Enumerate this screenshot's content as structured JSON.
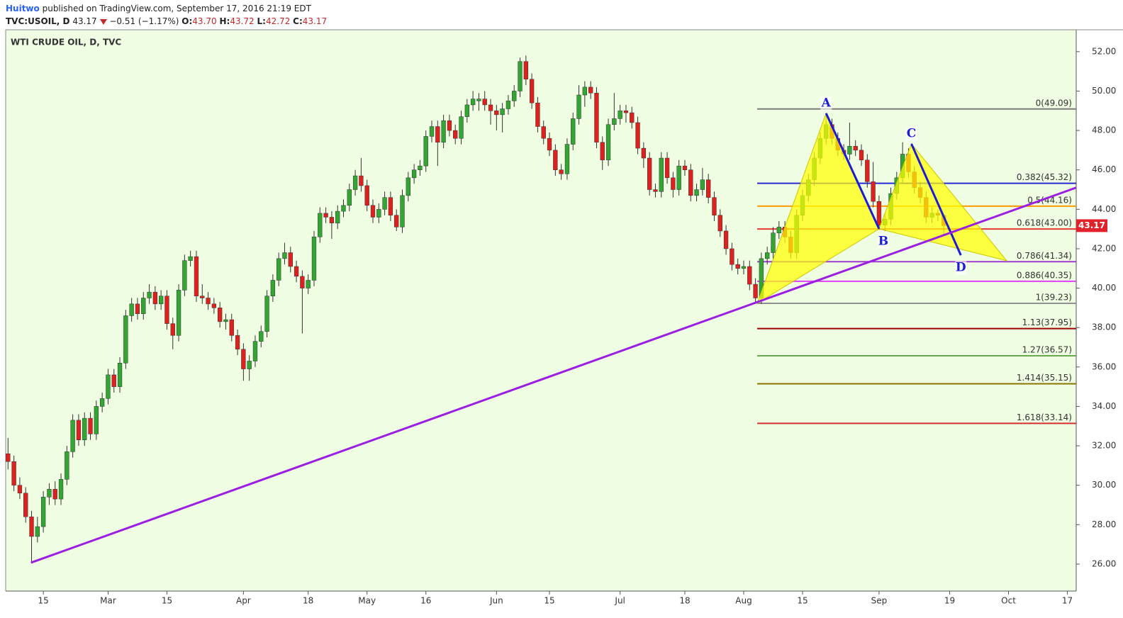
{
  "header": {
    "author": "Huitwo",
    "byline": "published on TradingView.com, September 17, 2016 21:19 EDT",
    "symbol": "TVC:USOIL, D",
    "price": "43.17",
    "change": "−0.51 (−1.17%)",
    "ohlc": [
      {
        "key": "O:",
        "value": "43.70"
      },
      {
        "key": "H:",
        "value": "43.72"
      },
      {
        "key": "L:",
        "value": "42.72"
      },
      {
        "key": "C:",
        "value": "43.17"
      }
    ]
  },
  "chart_data": {
    "type": "candlestick",
    "title": "WTI CRUDE OIL, D, TVC",
    "up_color": "#33a532",
    "down_color": "#e01f1f",
    "background": "#effde3",
    "last_price_color": "#e0232b",
    "xlim": [
      -0.4,
      181.5
    ],
    "ylim": [
      24.63,
      53.11
    ],
    "yticks": [
      {
        "value": 26,
        "label": "26.00"
      },
      {
        "value": 28,
        "label": "28.00"
      },
      {
        "value": 30,
        "label": "30.00"
      },
      {
        "value": 32,
        "label": "32.00"
      },
      {
        "value": 34,
        "label": "34.00"
      },
      {
        "value": 36,
        "label": "36.00"
      },
      {
        "value": 38,
        "label": "38.00"
      },
      {
        "value": 40,
        "label": "40.00"
      },
      {
        "value": 42,
        "label": "42.00"
      },
      {
        "value": 44,
        "label": "44.00"
      },
      {
        "value": 46,
        "label": "46.00"
      },
      {
        "value": 48,
        "label": "48.00"
      },
      {
        "value": 50,
        "label": "50.00"
      },
      {
        "value": 52,
        "label": "52.00"
      }
    ],
    "xticks": [
      {
        "value": 6,
        "label": "15"
      },
      {
        "value": 17,
        "label": "Mar"
      },
      {
        "value": 27,
        "label": "15"
      },
      {
        "value": 40,
        "label": "Apr"
      },
      {
        "value": 51,
        "label": "18"
      },
      {
        "value": 61,
        "label": "May"
      },
      {
        "value": 71,
        "label": "16"
      },
      {
        "value": 83,
        "label": "Jun"
      },
      {
        "value": 92,
        "label": "15"
      },
      {
        "value": 104,
        "label": "Jul"
      },
      {
        "value": 115,
        "label": "18"
      },
      {
        "value": 125,
        "label": "Aug"
      },
      {
        "value": 135,
        "label": "15"
      },
      {
        "value": 148,
        "label": "Sep"
      },
      {
        "value": 160,
        "label": "19"
      },
      {
        "value": 170,
        "label": "Oct"
      },
      {
        "value": 180,
        "label": "17"
      }
    ],
    "candles": [
      [
        31.6,
        32.4,
        30.8,
        31.2
      ],
      [
        31.2,
        31.5,
        29.7,
        30.0
      ],
      [
        30.0,
        30.4,
        29.3,
        29.6
      ],
      [
        29.6,
        29.9,
        28.1,
        28.4
      ],
      [
        28.4,
        28.7,
        26.1,
        27.4
      ],
      [
        27.4,
        28.4,
        27.1,
        27.9
      ],
      [
        27.9,
        29.7,
        27.6,
        29.4
      ],
      [
        29.4,
        30.1,
        29.0,
        29.8
      ],
      [
        29.8,
        30.2,
        29.0,
        29.3
      ],
      [
        29.3,
        30.6,
        29.0,
        30.3
      ],
      [
        30.3,
        32.0,
        30.0,
        31.7
      ],
      [
        31.7,
        33.6,
        31.4,
        33.3
      ],
      [
        33.3,
        33.6,
        32.0,
        32.3
      ],
      [
        32.3,
        33.7,
        32.0,
        33.4
      ],
      [
        33.4,
        33.7,
        32.3,
        32.6
      ],
      [
        32.6,
        34.3,
        32.3,
        34.0
      ],
      [
        34.0,
        34.7,
        33.7,
        34.4
      ],
      [
        34.4,
        35.9,
        34.1,
        35.6
      ],
      [
        35.6,
        35.9,
        34.7,
        35.0
      ],
      [
        35.0,
        36.5,
        34.7,
        36.2
      ],
      [
        36.2,
        38.9,
        35.9,
        38.6
      ],
      [
        38.6,
        39.5,
        38.3,
        39.2
      ],
      [
        39.2,
        39.5,
        38.4,
        38.7
      ],
      [
        38.7,
        39.8,
        38.4,
        39.5
      ],
      [
        39.5,
        40.2,
        39.2,
        39.8
      ],
      [
        39.8,
        40.1,
        38.9,
        39.2
      ],
      [
        39.2,
        39.9,
        38.9,
        39.6
      ],
      [
        39.6,
        39.9,
        37.9,
        38.2
      ],
      [
        38.2,
        38.5,
        36.9,
        37.6
      ],
      [
        37.6,
        40.2,
        37.3,
        39.9
      ],
      [
        39.9,
        41.7,
        39.6,
        41.4
      ],
      [
        41.4,
        41.9,
        41.1,
        41.6
      ],
      [
        41.6,
        41.9,
        39.3,
        39.6
      ],
      [
        39.6,
        40.2,
        39.2,
        39.5
      ],
      [
        39.5,
        39.8,
        38.9,
        39.2
      ],
      [
        39.2,
        39.5,
        38.7,
        39.0
      ],
      [
        39.0,
        39.3,
        38.0,
        38.3
      ],
      [
        38.3,
        38.7,
        37.9,
        38.4
      ],
      [
        38.4,
        38.7,
        37.3,
        37.6
      ],
      [
        37.6,
        37.9,
        36.6,
        36.9
      ],
      [
        36.9,
        37.2,
        35.3,
        35.9
      ],
      [
        35.9,
        36.6,
        35.3,
        36.3
      ],
      [
        36.3,
        37.6,
        36.0,
        37.3
      ],
      [
        37.3,
        38.1,
        37.0,
        37.8
      ],
      [
        37.8,
        39.9,
        37.5,
        39.6
      ],
      [
        39.6,
        40.7,
        39.3,
        40.4
      ],
      [
        40.4,
        41.8,
        40.1,
        41.5
      ],
      [
        41.5,
        42.3,
        41.2,
        41.8
      ],
      [
        41.8,
        42.1,
        40.8,
        41.1
      ],
      [
        41.1,
        41.4,
        40.3,
        40.6
      ],
      [
        40.6,
        40.9,
        37.7,
        40.0
      ],
      [
        40.0,
        40.7,
        39.7,
        40.4
      ],
      [
        40.4,
        42.9,
        40.1,
        42.6
      ],
      [
        42.6,
        44.1,
        42.3,
        43.8
      ],
      [
        43.8,
        44.1,
        43.3,
        43.6
      ],
      [
        43.6,
        43.9,
        42.5,
        43.3
      ],
      [
        43.3,
        44.2,
        43.0,
        43.9
      ],
      [
        43.9,
        44.5,
        43.6,
        44.2
      ],
      [
        44.2,
        45.3,
        43.9,
        45.0
      ],
      [
        45.0,
        46.0,
        44.7,
        45.7
      ],
      [
        45.7,
        46.6,
        44.9,
        45.2
      ],
      [
        45.2,
        45.5,
        43.9,
        44.2
      ],
      [
        44.2,
        44.5,
        43.3,
        43.6
      ],
      [
        43.6,
        44.3,
        43.3,
        44.0
      ],
      [
        44.0,
        44.9,
        43.7,
        44.6
      ],
      [
        44.6,
        44.9,
        43.4,
        43.7
      ],
      [
        43.7,
        44.0,
        42.9,
        43.1
      ],
      [
        43.1,
        45.0,
        42.8,
        44.7
      ],
      [
        44.7,
        45.9,
        44.4,
        45.6
      ],
      [
        45.6,
        46.3,
        45.3,
        46.0
      ],
      [
        46.0,
        46.5,
        45.7,
        46.2
      ],
      [
        46.2,
        48.0,
        45.9,
        47.7
      ],
      [
        47.7,
        48.5,
        47.4,
        48.2
      ],
      [
        48.2,
        48.5,
        46.2,
        47.4
      ],
      [
        47.4,
        48.8,
        47.1,
        48.5
      ],
      [
        48.5,
        48.8,
        47.7,
        48.0
      ],
      [
        48.0,
        48.3,
        47.3,
        47.6
      ],
      [
        47.6,
        49.0,
        47.3,
        48.7
      ],
      [
        48.7,
        49.6,
        48.4,
        49.3
      ],
      [
        49.3,
        50.0,
        49.0,
        49.6
      ],
      [
        49.5,
        49.9,
        49.0,
        49.6
      ],
      [
        49.6,
        50.0,
        49.0,
        49.3
      ],
      [
        49.3,
        49.6,
        48.3,
        49.0
      ],
      [
        49.0,
        49.3,
        48.0,
        48.8
      ],
      [
        48.8,
        49.4,
        47.9,
        49.1
      ],
      [
        49.1,
        49.8,
        48.8,
        49.5
      ],
      [
        49.5,
        50.3,
        49.2,
        50.0
      ],
      [
        50.0,
        51.7,
        49.7,
        51.5
      ],
      [
        51.5,
        51.8,
        50.3,
        50.6
      ],
      [
        50.6,
        50.9,
        49.1,
        49.4
      ],
      [
        49.4,
        49.7,
        47.9,
        48.2
      ],
      [
        48.2,
        48.5,
        47.3,
        47.6
      ],
      [
        47.6,
        47.9,
        46.7,
        47.0
      ],
      [
        47.0,
        47.3,
        45.7,
        46.0
      ],
      [
        46.0,
        46.3,
        45.5,
        45.8
      ],
      [
        45.8,
        47.6,
        45.5,
        47.3
      ],
      [
        47.3,
        48.9,
        47.0,
        48.6
      ],
      [
        48.6,
        50.3,
        48.3,
        49.8
      ],
      [
        49.8,
        50.5,
        49.2,
        50.2
      ],
      [
        50.2,
        50.5,
        49.6,
        49.9
      ],
      [
        49.9,
        50.2,
        47.1,
        47.4
      ],
      [
        47.4,
        47.7,
        46.0,
        46.5
      ],
      [
        46.5,
        48.6,
        46.2,
        48.3
      ],
      [
        48.3,
        49.9,
        48.0,
        48.6
      ],
      [
        48.6,
        49.3,
        48.3,
        49.0
      ],
      [
        49.0,
        49.3,
        48.4,
        48.9
      ],
      [
        48.9,
        49.2,
        48.1,
        48.4
      ],
      [
        48.4,
        48.7,
        46.8,
        47.1
      ],
      [
        47.1,
        47.4,
        46.1,
        46.6
      ],
      [
        46.6,
        46.9,
        44.7,
        45.0
      ],
      [
        45.0,
        45.3,
        44.6,
        44.9
      ],
      [
        44.9,
        46.9,
        44.6,
        46.6
      ],
      [
        46.6,
        46.9,
        45.3,
        45.6
      ],
      [
        45.6,
        45.9,
        44.6,
        45.0
      ],
      [
        45.0,
        46.5,
        44.7,
        46.2
      ],
      [
        46.2,
        46.5,
        45.7,
        46.0
      ],
      [
        46.0,
        46.3,
        44.4,
        44.7
      ],
      [
        44.7,
        45.3,
        44.4,
        45.0
      ],
      [
        45.0,
        46.1,
        44.7,
        45.5
      ],
      [
        45.5,
        45.8,
        44.3,
        44.6
      ],
      [
        44.6,
        44.9,
        43.4,
        43.7
      ],
      [
        43.7,
        44.0,
        42.6,
        42.9
      ],
      [
        42.9,
        43.2,
        41.7,
        42.0
      ],
      [
        42.0,
        42.3,
        40.9,
        41.2
      ],
      [
        41.2,
        41.5,
        40.7,
        41.0
      ],
      [
        41.0,
        41.4,
        40.7,
        41.1
      ],
      [
        41.1,
        41.4,
        39.9,
        40.2
      ],
      [
        40.2,
        40.5,
        39.2,
        39.5
      ],
      [
        39.5,
        41.8,
        39.2,
        41.5
      ],
      [
        41.5,
        42.1,
        41.2,
        41.8
      ],
      [
        41.8,
        43.1,
        41.5,
        42.8
      ],
      [
        42.8,
        43.4,
        42.5,
        43.1
      ],
      [
        43.1,
        43.4,
        42.3,
        42.6
      ],
      [
        42.6,
        42.9,
        41.5,
        41.8
      ],
      [
        41.8,
        44.0,
        41.5,
        43.7
      ],
      [
        43.7,
        45.0,
        43.4,
        44.7
      ],
      [
        44.7,
        45.8,
        44.4,
        45.5
      ],
      [
        45.5,
        46.9,
        45.2,
        46.6
      ],
      [
        46.6,
        47.9,
        46.3,
        47.6
      ],
      [
        47.6,
        48.8,
        47.3,
        48.3
      ],
      [
        48.3,
        48.6,
        47.3,
        47.6
      ],
      [
        47.6,
        47.9,
        46.7,
        47.0
      ],
      [
        47.0,
        47.3,
        46.5,
        46.8
      ],
      [
        46.8,
        48.4,
        46.5,
        47.2
      ],
      [
        47.2,
        47.5,
        46.7,
        47.0
      ],
      [
        47.0,
        47.3,
        46.2,
        46.5
      ],
      [
        46.5,
        46.8,
        45.1,
        45.4
      ],
      [
        45.4,
        46.4,
        44.1,
        44.4
      ],
      [
        44.4,
        44.7,
        43.0,
        43.2
      ],
      [
        43.2,
        43.8,
        42.9,
        43.5
      ],
      [
        43.5,
        45.1,
        43.2,
        44.8
      ],
      [
        44.8,
        45.9,
        44.5,
        45.6
      ],
      [
        45.6,
        47.4,
        45.3,
        46.8
      ],
      [
        46.8,
        47.1,
        45.6,
        45.9
      ],
      [
        45.9,
        46.2,
        44.8,
        45.1
      ],
      [
        45.1,
        45.4,
        44.3,
        44.6
      ],
      [
        44.6,
        44.9,
        43.3,
        43.6
      ],
      [
        43.6,
        44.1,
        43.3,
        43.8
      ],
      [
        43.8,
        44.0,
        43.4,
        43.7
      ],
      [
        43.7,
        43.72,
        42.72,
        43.17
      ]
    ],
    "trendline": {
      "x": [
        3.9,
        181.5
      ],
      "y": [
        26.07,
        45.1
      ],
      "color": "#9b1fe0"
    },
    "pattern_points": {
      "x": [
        127.3,
        139,
        148,
        153.5,
        169.7
      ],
      "y": [
        39.23,
        48.87,
        43.01,
        47.32,
        41.39
      ],
      "labels": [
        null,
        "A",
        "B",
        "C",
        "D"
      ],
      "fill": "#ffff00",
      "leg_color": "#1c1cd6"
    },
    "d_leg_end": {
      "x": 161.9,
      "y": 41.67
    },
    "fib_from": 127.3,
    "fib_levels": [
      {
        "value": 49.09,
        "label": "0(49.09)",
        "color": "#7a7a7a"
      },
      {
        "value": 45.32,
        "label": "0.382(45.32)",
        "color": "#2a2ad4"
      },
      {
        "value": 44.16,
        "label": "0.5(44.16)",
        "color": "#ff9800"
      },
      {
        "value": 43.0,
        "label": "0.618(43.00)",
        "color": "#e53935"
      },
      {
        "value": 41.34,
        "label": "0.786(41.34)",
        "color": "#a03cd0"
      },
      {
        "value": 40.35,
        "label": "0.886(40.35)",
        "color": "#e040fb"
      },
      {
        "value": 39.23,
        "label": "1(39.23)",
        "color": "#909090"
      },
      {
        "value": 37.95,
        "label": "1.13(37.95)",
        "color": "#9a0000"
      },
      {
        "value": 36.57,
        "label": "1.27(36.57)",
        "color": "#6aa84f"
      },
      {
        "value": 35.15,
        "label": "1.414(35.15)",
        "color": "#8b7500"
      },
      {
        "value": 33.14,
        "label": "1.618(33.14)",
        "color": "#d32f2f"
      }
    ]
  }
}
